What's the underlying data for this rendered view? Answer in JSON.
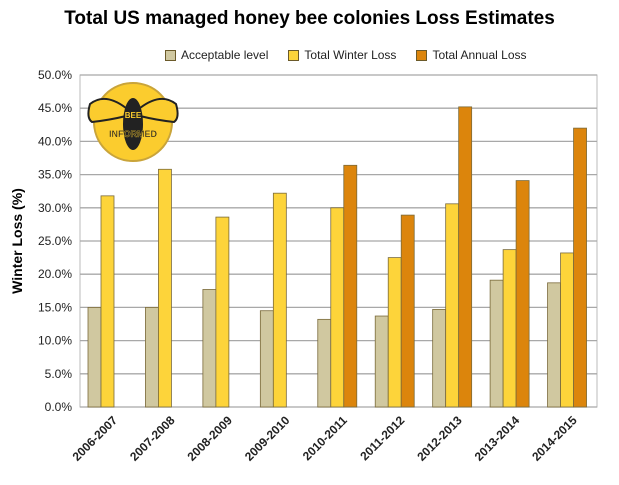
{
  "chart_data": {
    "type": "bar",
    "title": "Total US managed honey bee colonies Loss Estimates",
    "ylabel": "Winter Loss (%)",
    "xlabel": "",
    "ylim": [
      0,
      50
    ],
    "yticks": [
      "0.0%",
      "5.0%",
      "10.0%",
      "15.0%",
      "20.0%",
      "25.0%",
      "30.0%",
      "35.0%",
      "40.0%",
      "45.0%",
      "50.0%"
    ],
    "grid": true,
    "legend_position": "top",
    "categories": [
      "2006-2007",
      "2007-2008",
      "2008-2009",
      "2009-2010",
      "2010-2011",
      "2011-2012",
      "2012-2013",
      "2013-2014",
      "2014-2015"
    ],
    "series": [
      {
        "name": "Acceptable level",
        "color": "#d0c8a0",
        "values": [
          15.0,
          15.0,
          17.7,
          14.5,
          13.2,
          13.7,
          14.7,
          19.1,
          18.7
        ]
      },
      {
        "name": "Total Winter Loss",
        "color": "#fdd43a",
        "values": [
          31.8,
          35.8,
          28.6,
          32.2,
          30.0,
          22.5,
          30.6,
          23.7,
          23.2
        ]
      },
      {
        "name": "Total Annual Loss",
        "color": "#dc850c",
        "values": [
          null,
          null,
          null,
          null,
          36.4,
          28.9,
          45.2,
          34.1,
          42.0
        ]
      }
    ],
    "logo": {
      "text_top": "BEE",
      "text_bottom": "INFORMED"
    }
  }
}
